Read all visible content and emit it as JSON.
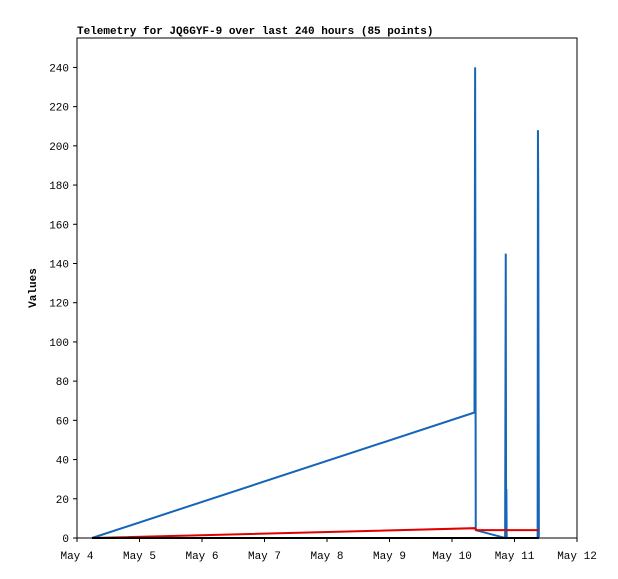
{
  "chart_data": {
    "type": "line",
    "title": "Telemetry for JQ6GYF-9 over last 240 hours (85 points)",
    "y_label": "Values",
    "xlim": [
      4,
      12
    ],
    "xticks": [
      {
        "value": 4,
        "label": "May 4"
      },
      {
        "value": 5,
        "label": "May 5"
      },
      {
        "value": 6,
        "label": "May 6"
      },
      {
        "value": 7,
        "label": "May 7"
      },
      {
        "value": 8,
        "label": "May 8"
      },
      {
        "value": 9,
        "label": "May 9"
      },
      {
        "value": 10,
        "label": "May 10"
      },
      {
        "value": 11,
        "label": "May 11"
      },
      {
        "value": 12,
        "label": "May 12"
      }
    ],
    "ylim": [
      0,
      255
    ],
    "yticks": [
      0,
      20,
      40,
      60,
      80,
      100,
      120,
      140,
      160,
      180,
      200,
      220,
      240
    ],
    "series": [
      {
        "color": "#1565b8",
        "x": [
          4.24,
          10.36,
          10.37,
          10.38,
          10.85,
          10.86,
          10.865,
          10.87,
          10.875,
          11.37,
          11.375,
          11.38,
          11.385,
          11.39
        ],
        "values": [
          0,
          64,
          240,
          4,
          0,
          145,
          16,
          25,
          0,
          0,
          208,
          177,
          80,
          0
        ]
      },
      {
        "color": "#e00000",
        "x": [
          4.24,
          10.36,
          10.4,
          11.39
        ],
        "values": [
          0,
          5,
          4,
          4
        ]
      },
      {
        "color": "#000000",
        "x": [
          4.24,
          11.39
        ],
        "values": [
          0,
          0
        ]
      }
    ]
  }
}
